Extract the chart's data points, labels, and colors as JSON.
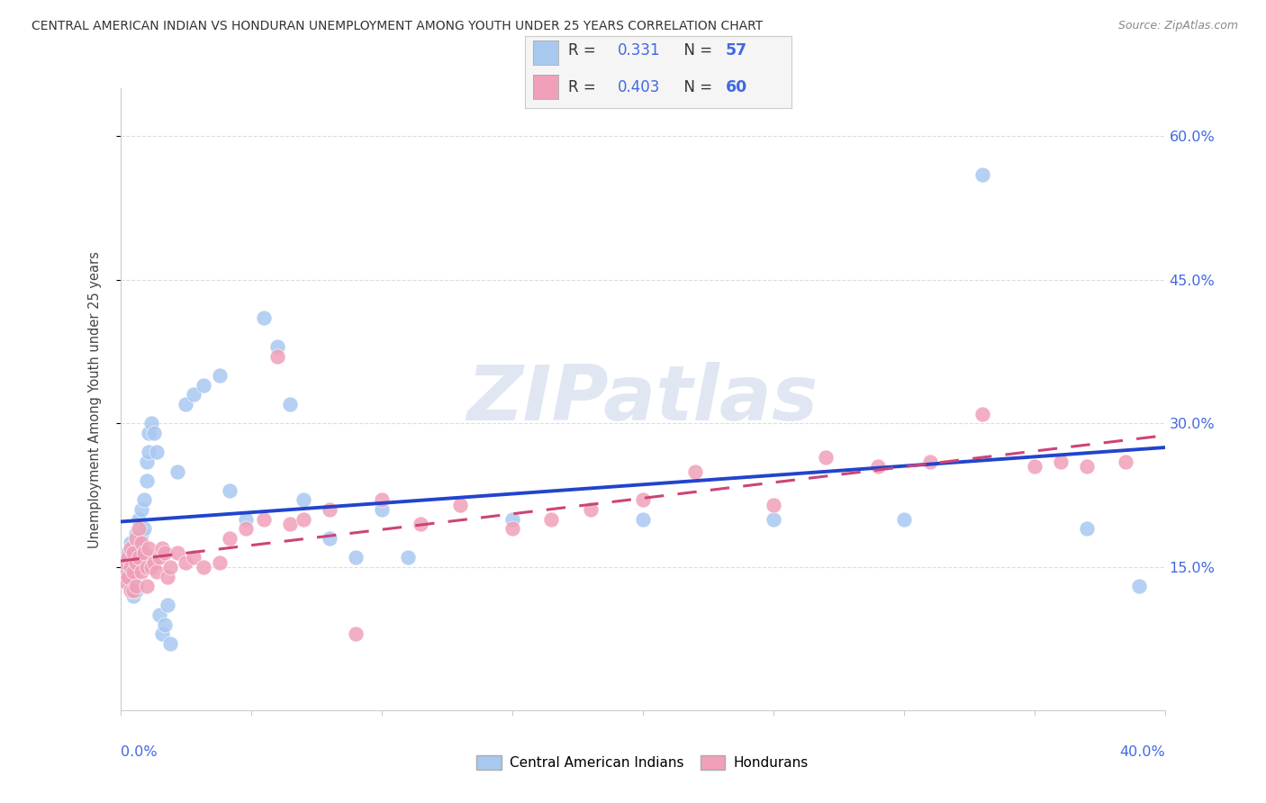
{
  "title": "CENTRAL AMERICAN INDIAN VS HONDURAN UNEMPLOYMENT AMONG YOUTH UNDER 25 YEARS CORRELATION CHART",
  "source": "Source: ZipAtlas.com",
  "ylabel": "Unemployment Among Youth under 25 years",
  "xmin": 0.0,
  "xmax": 0.4,
  "ymin": 0.0,
  "ymax": 0.65,
  "ytick_vals": [
    0.15,
    0.3,
    0.45,
    0.6
  ],
  "ytick_labels": [
    "15.0%",
    "30.0%",
    "45.0%",
    "60.0%"
  ],
  "watermark": "ZIPatlas",
  "blue_color": "#a8c8f0",
  "blue_edge": "#7aaae0",
  "blue_trend": "#2244cc",
  "pink_color": "#f0a0b8",
  "pink_edge": "#e07090",
  "pink_trend": "#cc4477",
  "R1": "0.331",
  "N1": "57",
  "R2": "0.403",
  "N2": "60",
  "legend1": "Central American Indians",
  "legend2": "Hondurans",
  "value_color": "#4169e1",
  "watermark_color": "#c8d4e8",
  "grid_color": "#dddddd",
  "background": "#ffffff",
  "title_color": "#333333",
  "source_color": "#888888",
  "label_color": "#4169e1",
  "blue_x": [
    0.001,
    0.002,
    0.002,
    0.003,
    0.003,
    0.004,
    0.004,
    0.004,
    0.005,
    0.005,
    0.005,
    0.005,
    0.006,
    0.006,
    0.006,
    0.006,
    0.007,
    0.007,
    0.007,
    0.008,
    0.008,
    0.009,
    0.009,
    0.01,
    0.01,
    0.011,
    0.011,
    0.012,
    0.013,
    0.014,
    0.015,
    0.016,
    0.017,
    0.018,
    0.019,
    0.022,
    0.025,
    0.028,
    0.032,
    0.038,
    0.042,
    0.048,
    0.055,
    0.06,
    0.065,
    0.07,
    0.08,
    0.09,
    0.1,
    0.11,
    0.15,
    0.2,
    0.25,
    0.3,
    0.33,
    0.37,
    0.39
  ],
  "blue_y": [
    0.155,
    0.16,
    0.14,
    0.165,
    0.145,
    0.175,
    0.15,
    0.13,
    0.17,
    0.155,
    0.135,
    0.12,
    0.185,
    0.165,
    0.145,
    0.125,
    0.2,
    0.175,
    0.15,
    0.21,
    0.185,
    0.22,
    0.19,
    0.24,
    0.26,
    0.29,
    0.27,
    0.3,
    0.29,
    0.27,
    0.1,
    0.08,
    0.09,
    0.11,
    0.07,
    0.25,
    0.32,
    0.33,
    0.34,
    0.35,
    0.23,
    0.2,
    0.41,
    0.38,
    0.32,
    0.22,
    0.18,
    0.16,
    0.21,
    0.16,
    0.2,
    0.2,
    0.2,
    0.2,
    0.56,
    0.19,
    0.13
  ],
  "pink_x": [
    0.001,
    0.002,
    0.002,
    0.003,
    0.003,
    0.004,
    0.004,
    0.004,
    0.005,
    0.005,
    0.005,
    0.006,
    0.006,
    0.006,
    0.007,
    0.007,
    0.008,
    0.008,
    0.009,
    0.01,
    0.01,
    0.011,
    0.012,
    0.013,
    0.014,
    0.015,
    0.016,
    0.017,
    0.018,
    0.019,
    0.022,
    0.025,
    0.028,
    0.032,
    0.038,
    0.042,
    0.048,
    0.055,
    0.06,
    0.065,
    0.07,
    0.08,
    0.09,
    0.1,
    0.115,
    0.13,
    0.15,
    0.165,
    0.18,
    0.2,
    0.22,
    0.25,
    0.27,
    0.29,
    0.31,
    0.33,
    0.35,
    0.36,
    0.37,
    0.385
  ],
  "pink_y": [
    0.145,
    0.155,
    0.135,
    0.16,
    0.14,
    0.17,
    0.15,
    0.125,
    0.165,
    0.145,
    0.125,
    0.18,
    0.155,
    0.13,
    0.19,
    0.16,
    0.175,
    0.145,
    0.165,
    0.15,
    0.13,
    0.17,
    0.15,
    0.155,
    0.145,
    0.16,
    0.17,
    0.165,
    0.14,
    0.15,
    0.165,
    0.155,
    0.16,
    0.15,
    0.155,
    0.18,
    0.19,
    0.2,
    0.37,
    0.195,
    0.2,
    0.21,
    0.08,
    0.22,
    0.195,
    0.215,
    0.19,
    0.2,
    0.21,
    0.22,
    0.25,
    0.215,
    0.265,
    0.255,
    0.26,
    0.31,
    0.255,
    0.26,
    0.255,
    0.26
  ]
}
